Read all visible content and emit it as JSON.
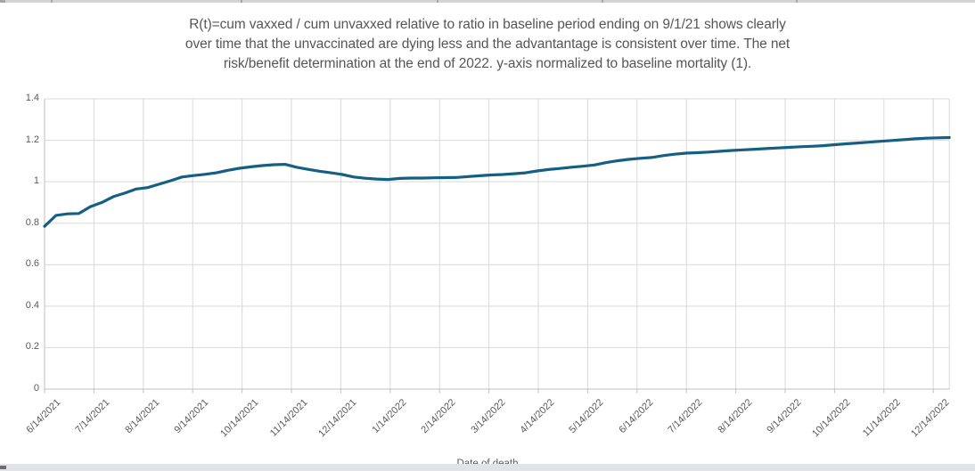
{
  "title": {
    "line1": "R(t)=cum vaxxed / cum unvaxxed relative to ratio in baseline period ending on 9/1/21 shows clearly",
    "line2": "over time that the unvaccinated are dying less and the advantantage is consistent over time. The net",
    "line3": "risk/benefit determination at the end of 2022. y-axis normalized to baseline mortality (1)."
  },
  "chart_data": {
    "type": "line",
    "title": "R(t)=cum vaxxed / cum unvaxxed relative to ratio in baseline period ending on 9/1/21 shows clearly over time that the unvaccinated are dying less and the advantantage is consistent over time. The net risk/benefit determination at the end of 2022. y-axis normalized to baseline mortality (1).",
    "xlabel": "Date of death",
    "ylabel": "",
    "ylim": [
      0,
      1.4
    ],
    "grid": true,
    "legend_position": "none",
    "yticks": [
      {
        "label": "0",
        "value": 0
      },
      {
        "label": "0.2",
        "value": 0.2
      },
      {
        "label": "0.4",
        "value": 0.4
      },
      {
        "label": "0.6",
        "value": 0.6
      },
      {
        "label": "0.8",
        "value": 0.8
      },
      {
        "label": "1",
        "value": 1
      },
      {
        "label": "1.2",
        "value": 1.2
      },
      {
        "label": "1.4",
        "value": 1.4
      }
    ],
    "xticks": [
      "6/14/2021",
      "7/14/2021",
      "8/14/2021",
      "9/14/2021",
      "10/14/2021",
      "11/14/2021",
      "12/14/2021",
      "1/14/2022",
      "2/14/2022",
      "3/14/2022",
      "4/14/2022",
      "5/14/2022",
      "6/14/2022",
      "7/14/2022",
      "8/14/2022",
      "9/14/2022",
      "10/14/2022",
      "11/14/2022",
      "12/14/2022"
    ],
    "series": [
      {
        "name": "R(t)",
        "color": "#156082",
        "x": [
          "6/14/2021",
          "6/21/2021",
          "6/28/2021",
          "7/5/2021",
          "7/12/2021",
          "7/19/2021",
          "7/26/2021",
          "8/2/2021",
          "8/9/2021",
          "8/16/2021",
          "8/23/2021",
          "8/30/2021",
          "9/6/2021",
          "9/13/2021",
          "9/20/2021",
          "9/27/2021",
          "10/4/2021",
          "10/11/2021",
          "10/18/2021",
          "10/25/2021",
          "11/1/2021",
          "11/8/2021",
          "11/15/2021",
          "11/22/2021",
          "11/29/2021",
          "12/6/2021",
          "12/13/2021",
          "12/20/2021",
          "12/27/2021",
          "1/3/2022",
          "1/10/2022",
          "1/17/2022",
          "1/24/2022",
          "1/31/2022",
          "2/7/2022",
          "2/14/2022",
          "2/21/2022",
          "2/28/2022",
          "3/7/2022",
          "3/14/2022",
          "3/21/2022",
          "3/28/2022",
          "4/4/2022",
          "4/11/2022",
          "4/18/2022",
          "4/25/2022",
          "5/2/2022",
          "5/9/2022",
          "5/16/2022",
          "5/23/2022",
          "5/30/2022",
          "6/6/2022",
          "6/13/2022",
          "6/20/2022",
          "6/27/2022",
          "7/4/2022",
          "7/11/2022",
          "7/18/2022",
          "7/25/2022",
          "8/1/2022",
          "8/8/2022",
          "8/15/2022",
          "8/22/2022",
          "8/29/2022",
          "9/5/2022",
          "9/12/2022",
          "9/19/2022",
          "9/26/2022",
          "10/3/2022",
          "10/10/2022",
          "10/17/2022",
          "10/24/2022",
          "10/31/2022",
          "11/7/2022",
          "11/14/2022",
          "11/21/2022",
          "11/28/2022",
          "12/5/2022",
          "12/12/2022",
          "12/19/2022"
        ],
        "values": [
          0.785,
          0.838,
          0.845,
          0.847,
          0.88,
          0.9,
          0.928,
          0.945,
          0.965,
          0.972,
          0.988,
          1.005,
          1.023,
          1.03,
          1.036,
          1.043,
          1.055,
          1.065,
          1.072,
          1.078,
          1.082,
          1.084,
          1.07,
          1.06,
          1.051,
          1.043,
          1.035,
          1.023,
          1.017,
          1.013,
          1.011,
          1.016,
          1.018,
          1.018,
          1.019,
          1.02,
          1.021,
          1.025,
          1.029,
          1.033,
          1.035,
          1.039,
          1.043,
          1.052,
          1.059,
          1.064,
          1.07,
          1.075,
          1.081,
          1.092,
          1.101,
          1.108,
          1.113,
          1.117,
          1.126,
          1.133,
          1.138,
          1.14,
          1.143,
          1.147,
          1.151,
          1.154,
          1.157,
          1.16,
          1.163,
          1.166,
          1.169,
          1.171,
          1.174,
          1.179,
          1.183,
          1.187,
          1.191,
          1.195,
          1.199,
          1.203,
          1.207,
          1.21,
          1.212,
          1.213
        ]
      }
    ]
  },
  "colors": {
    "series_line": "#156082",
    "gridline": "#d9d9d9",
    "axis_line": "#bfbfbf",
    "text_gray": "#595959",
    "top_strip": "#d3d3d3",
    "bottom_bar": "#e1e3e7"
  }
}
